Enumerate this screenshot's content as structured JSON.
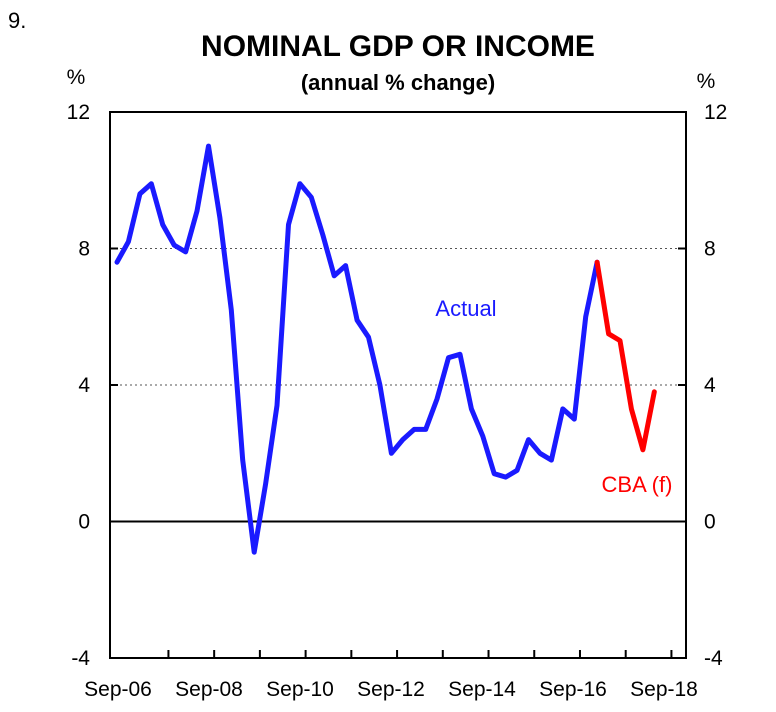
{
  "figure_number": "9.",
  "chart_data": {
    "type": "line",
    "title": "NOMINAL GDP OR INCOME",
    "subtitle": "(annual % change)",
    "ylabel_left": "%",
    "ylabel_right": "%",
    "ylim": [
      -4,
      12
    ],
    "yticks": [
      -4,
      0,
      4,
      8,
      12
    ],
    "ytick_labels": [
      "-4",
      "0",
      "4",
      "8",
      "12"
    ],
    "gridlines_dashed_at": [
      4,
      8
    ],
    "zero_line": 0,
    "x_start": "Sep-06",
    "x_end": "Sep-18",
    "x_step": "quarterly",
    "xtick_labels": [
      "Sep-06",
      "Sep-08",
      "Sep-10",
      "Sep-12",
      "Sep-14",
      "Sep-16",
      "Sep-18"
    ],
    "series": [
      {
        "name": "Actual",
        "color": "#1a1aff",
        "x_start_index": 0,
        "values": [
          7.6,
          8.2,
          9.6,
          9.9,
          8.7,
          8.1,
          7.9,
          9.1,
          11.0,
          8.9,
          6.2,
          1.8,
          -0.9,
          1.1,
          3.4,
          8.7,
          9.9,
          9.5,
          8.4,
          7.2,
          7.5,
          5.9,
          5.4,
          4.0,
          2.0,
          2.4,
          2.7,
          2.7,
          3.6,
          4.8,
          4.9,
          3.3,
          2.5,
          1.4,
          1.3,
          1.5,
          2.4,
          2.0,
          1.8,
          3.3,
          3.0,
          6.0,
          7.6
        ],
        "label": "Actual"
      },
      {
        "name": "CBA (f)",
        "color": "#ff0000",
        "x_start_index": 42,
        "values": [
          7.6,
          5.5,
          5.3,
          3.3,
          2.1,
          3.8
        ],
        "label": "CBA (f)"
      }
    ]
  }
}
